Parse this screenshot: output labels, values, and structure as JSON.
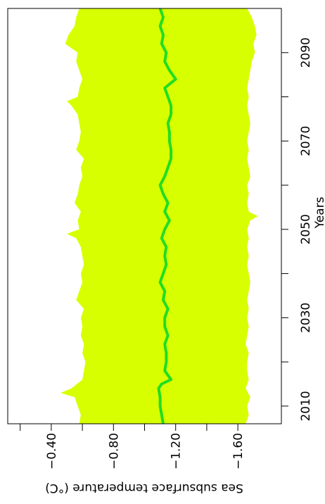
{
  "chart_data": {
    "type": "area",
    "orientation": "rotated-90-clockwise",
    "title": "",
    "xlabel": "Years",
    "ylabel": "Sea subsurface temperature (°C)",
    "x_ticks": [
      2010,
      2030,
      2050,
      2070,
      2090
    ],
    "y_ticks": [
      -0.4,
      -0.8,
      -1.2,
      -1.6
    ],
    "y_tick_labels": [
      "−0.40",
      "−0.80",
      "−1.20",
      "−1.60"
    ],
    "xlim": [
      2006,
      2100
    ],
    "ylim": [
      -0.12,
      -1.88
    ],
    "grid": false,
    "colors": {
      "band": "#d7ff00",
      "mean_line": "#22dd22",
      "axis": "#000000"
    },
    "series": [
      {
        "role": "mean",
        "x": [
          2006,
          2008,
          2010,
          2012,
          2014,
          2015,
          2016,
          2018,
          2020,
          2022,
          2024,
          2026,
          2028,
          2030,
          2032,
          2034,
          2036,
          2038,
          2040,
          2042,
          2044,
          2046,
          2048,
          2050,
          2052,
          2054,
          2056,
          2058,
          2060,
          2062,
          2064,
          2066,
          2068,
          2070,
          2072,
          2074,
          2076,
          2078,
          2080,
          2082,
          2084,
          2086,
          2088,
          2090,
          2092,
          2094,
          2096,
          2098,
          2100
        ],
        "values": [
          -1.12,
          -1.11,
          -1.1,
          -1.1,
          -1.09,
          -1.11,
          -1.17,
          -1.13,
          -1.14,
          -1.14,
          -1.13,
          -1.15,
          -1.13,
          -1.13,
          -1.15,
          -1.12,
          -1.13,
          -1.1,
          -1.12,
          -1.14,
          -1.13,
          -1.14,
          -1.11,
          -1.13,
          -1.16,
          -1.13,
          -1.15,
          -1.12,
          -1.1,
          -1.13,
          -1.15,
          -1.17,
          -1.17,
          -1.16,
          -1.16,
          -1.15,
          -1.17,
          -1.17,
          -1.15,
          -1.13,
          -1.2,
          -1.16,
          -1.13,
          -1.14,
          -1.11,
          -1.12,
          -1.1,
          -1.12,
          -1.1
        ]
      },
      {
        "role": "upper-bound",
        "x": [
          2006,
          2008,
          2010,
          2012,
          2013,
          2014,
          2016,
          2018,
          2020,
          2022,
          2024,
          2026,
          2028,
          2030,
          2032,
          2034,
          2036,
          2038,
          2040,
          2042,
          2044,
          2046,
          2048,
          2049,
          2050,
          2052,
          2054,
          2056,
          2058,
          2060,
          2062,
          2064,
          2066,
          2068,
          2070,
          2072,
          2074,
          2076,
          2078,
          2079,
          2080,
          2082,
          2084,
          2086,
          2088,
          2090,
          2091,
          2092,
          2094,
          2096,
          2098,
          2100
        ],
        "values": [
          -0.58,
          -0.59,
          -0.57,
          -0.55,
          -0.46,
          -0.53,
          -0.6,
          -0.61,
          -0.62,
          -0.6,
          -0.61,
          -0.59,
          -0.6,
          -0.59,
          -0.61,
          -0.56,
          -0.58,
          -0.6,
          -0.59,
          -0.61,
          -0.6,
          -0.59,
          -0.56,
          -0.5,
          -0.58,
          -0.57,
          -0.59,
          -0.55,
          -0.57,
          -0.58,
          -0.6,
          -0.59,
          -0.61,
          -0.56,
          -0.58,
          -0.59,
          -0.58,
          -0.57,
          -0.53,
          -0.5,
          -0.57,
          -0.58,
          -0.6,
          -0.58,
          -0.56,
          -0.57,
          -0.53,
          -0.49,
          -0.51,
          -0.55,
          -0.56,
          -0.58
        ]
      },
      {
        "role": "lower-bound",
        "x": [
          2006,
          2008,
          2010,
          2012,
          2014,
          2016,
          2018,
          2020,
          2022,
          2024,
          2026,
          2028,
          2030,
          2032,
          2034,
          2036,
          2038,
          2040,
          2042,
          2044,
          2046,
          2048,
          2050,
          2052,
          2053,
          2054,
          2056,
          2058,
          2060,
          2062,
          2064,
          2066,
          2068,
          2070,
          2072,
          2074,
          2076,
          2078,
          2080,
          2082,
          2084,
          2086,
          2088,
          2090,
          2092,
          2094,
          2096,
          2098,
          2100
        ],
        "values": [
          -1.65,
          -1.67,
          -1.66,
          -1.68,
          -1.65,
          -1.67,
          -1.66,
          -1.66,
          -1.67,
          -1.65,
          -1.66,
          -1.67,
          -1.66,
          -1.67,
          -1.66,
          -1.67,
          -1.68,
          -1.67,
          -1.66,
          -1.67,
          -1.66,
          -1.67,
          -1.66,
          -1.68,
          -1.73,
          -1.67,
          -1.66,
          -1.67,
          -1.66,
          -1.68,
          -1.67,
          -1.66,
          -1.67,
          -1.66,
          -1.67,
          -1.68,
          -1.67,
          -1.66,
          -1.67,
          -1.66,
          -1.67,
          -1.68,
          -1.69,
          -1.71,
          -1.7,
          -1.72,
          -1.71,
          -1.69,
          -1.66
        ]
      }
    ]
  }
}
